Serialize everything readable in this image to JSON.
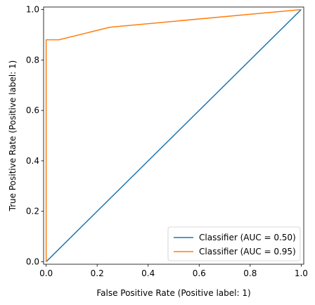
{
  "chart_data": {
    "type": "line",
    "title": "",
    "xlabel": "False Positive Rate (Positive label: 1)",
    "ylabel": "True Positive Rate (Positive label: 1)",
    "xlim": [
      -0.01,
      1.01
    ],
    "ylim": [
      -0.01,
      1.01
    ],
    "grid": false,
    "legend_position": "lower-right",
    "xticks": [
      "0.0",
      "0.2",
      "0.4",
      "0.6",
      "0.8",
      "1.0"
    ],
    "yticks": [
      "0.0",
      "0.2",
      "0.4",
      "0.6",
      "0.8",
      "1.0"
    ],
    "series": [
      {
        "name": "Classifier (AUC = 0.50)",
        "color": "#1f77b4",
        "x": [
          0.0,
          1.0
        ],
        "y": [
          0.0,
          1.0
        ]
      },
      {
        "name": "Classifier (AUC = 0.95)",
        "color": "#ff7f0e",
        "x": [
          0.0,
          0.0,
          0.0,
          0.02,
          0.05,
          0.25,
          1.0
        ],
        "y": [
          0.0,
          0.0,
          0.88,
          0.88,
          0.88,
          0.93,
          1.0
        ]
      }
    ]
  }
}
